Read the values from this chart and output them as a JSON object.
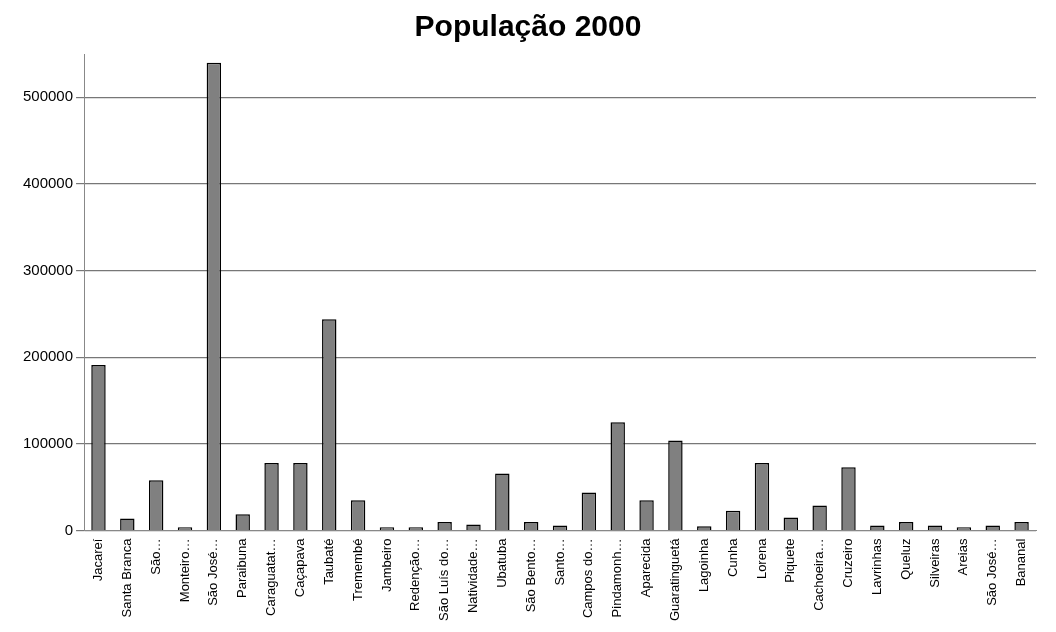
{
  "chart_data": {
    "type": "bar",
    "title": "População 2000",
    "categories": [
      "Jacareí",
      "Santa Branca",
      "São…",
      "Monteiro…",
      "São José…",
      "Paraibuna",
      "Caraguatat…",
      "Caçapava",
      "Taubaté",
      "Tremembé",
      "Jambeiro",
      "Redenção…",
      "São Luís do…",
      "Natividade…",
      "Ubatuba",
      "São Bento…",
      "Santo…",
      "Campos do…",
      "Pindamonh…",
      "Aparecida",
      "Guaratinguetá",
      "Lagoinha",
      "Cunha",
      "Lorena",
      "Piquete",
      "Cachoeira…",
      "Cruzeiro",
      "Lavrinhas",
      "Queluz",
      "Silveiras",
      "Areias",
      "São José…",
      "Bananal"
    ],
    "values": [
      191000,
      14000,
      58000,
      4000,
      540000,
      19000,
      78000,
      78000,
      244000,
      35000,
      4000,
      4000,
      10000,
      7000,
      66000,
      10000,
      6000,
      44000,
      125000,
      35000,
      104000,
      5000,
      23000,
      78000,
      15000,
      29000,
      73000,
      6000,
      10000,
      6000,
      4000,
      6000,
      10000
    ],
    "color": "#808080",
    "ylim": [
      0,
      550000
    ],
    "yticks": [
      0,
      100000,
      200000,
      300000,
      400000,
      500000
    ],
    "grid": "y",
    "legend": false
  }
}
